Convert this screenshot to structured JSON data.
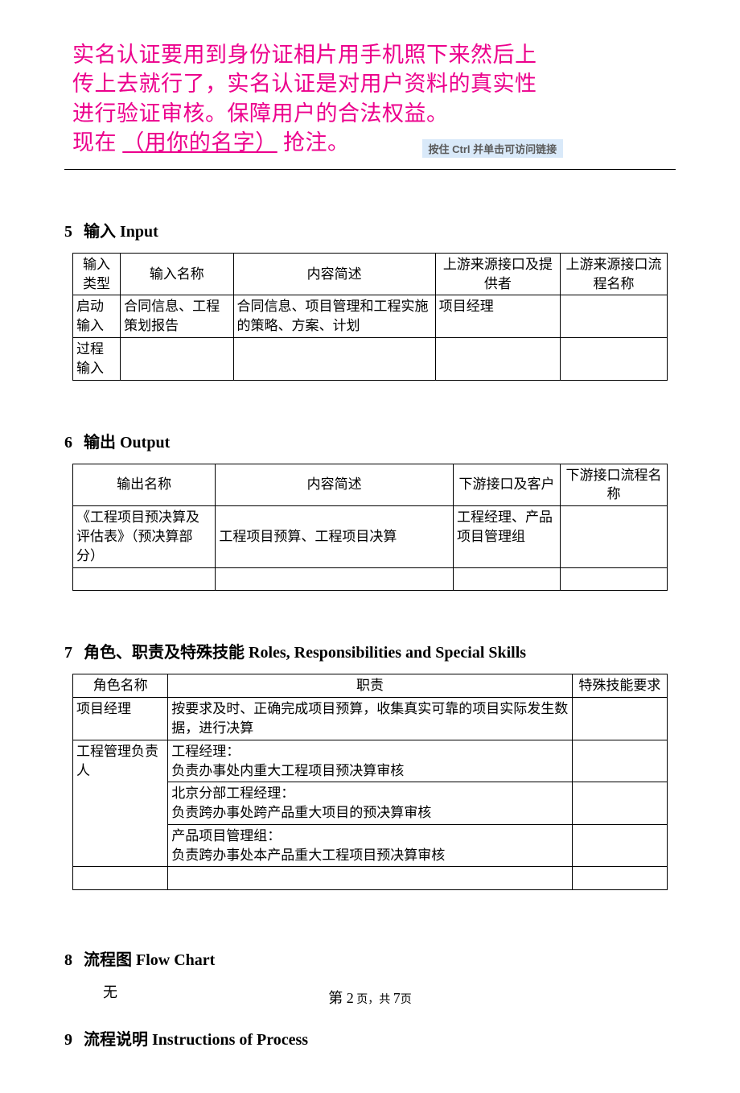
{
  "banner": {
    "line1": "实名认证要用到身份证相片用手机照下来然后上",
    "line2": "传上去就行了，实名认证是对用户资料的真实性",
    "line3": "进行验证审核。保障用户的合法权益。",
    "line4_prefix": "现在 ",
    "line4_link": "（用你的名字）",
    "line4_suffix": " 抢注。",
    "tooltip": "按住 Ctrl 并单击可访问链接",
    "text_color": "#ec008c",
    "tooltip_bg": "#d9e9f9"
  },
  "section5": {
    "heading_num": "5",
    "heading_text": "输入 Input",
    "columns": [
      "输入类型",
      "输入名称",
      "内容简述",
      "上游来源接口及提供者",
      "上游来源接口流程名称"
    ],
    "col_widths": [
      "8%",
      "19%",
      "34%",
      "21%",
      "18%"
    ],
    "rows": [
      [
        "启动输入",
        "合同信息、工程策划报告",
        "合同信息、项目管理和工程实施的策略、方案、计划",
        "项目经理",
        ""
      ],
      [
        "过程输入",
        "",
        "",
        "",
        ""
      ]
    ]
  },
  "section6": {
    "heading_num": "6",
    "heading_text": "输出 Output",
    "columns": [
      "输出名称",
      "内容简述",
      "下游接口及客户",
      "下游接口流程名称"
    ],
    "col_widths": [
      "24%",
      "40%",
      "18%",
      "18%"
    ],
    "rows": [
      [
        "《工程项目预决算及评估表》（预决算部分）",
        "工程项目预算、工程项目决算",
        "工程经理、产品项目管理组",
        ""
      ],
      [
        "",
        "",
        "",
        ""
      ]
    ]
  },
  "section7": {
    "heading_num": "7",
    "heading_text": "角色、职责及特殊技能 Roles, Responsibilities and Special Skills",
    "columns": [
      "角色名称",
      "职责",
      "特殊技能要求"
    ],
    "col_widths": [
      "16%",
      "68%",
      "16%"
    ],
    "rows": [
      [
        "项目经理",
        "按要求及时、正确完成项目预算，收集真实可靠的项目实际发生数据，进行决算",
        ""
      ],
      [
        "工程管理负责人",
        "工程经理：\n负责办事处内重大工程项目预决算审核",
        ""
      ],
      [
        "",
        "北京分部工程经理：\n负责跨办事处跨产品重大项目的预决算审核",
        ""
      ],
      [
        "",
        "产品项目管理组：\n负责跨办事处本产品重大工程项目预决算审核",
        ""
      ],
      [
        "",
        "",
        ""
      ]
    ],
    "merge_col0_rows": [
      1,
      2,
      3
    ]
  },
  "section8": {
    "heading_num": "8",
    "heading_text": "流程图  Flow Chart",
    "body": "无"
  },
  "section9": {
    "heading_num": "9",
    "heading_text": "流程说明  Instructions of    Process"
  },
  "footer": {
    "prefix": "第 ",
    "page_current": "2",
    "mid": " 页，共 ",
    "page_total": "7",
    "suffix": "页"
  }
}
